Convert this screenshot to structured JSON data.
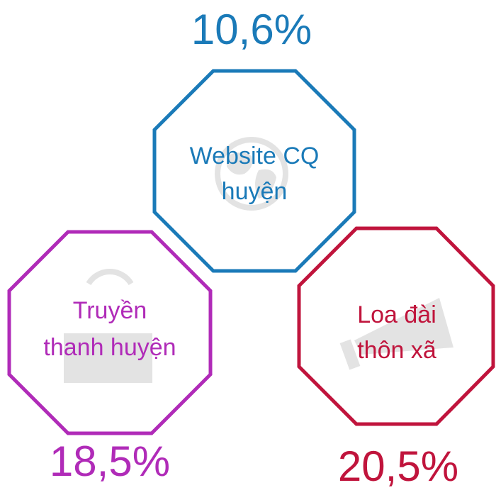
{
  "nodes": [
    {
      "label": [
        "Website CQ",
        "huyện"
      ],
      "value": "10,6%"
    },
    {
      "label": [
        "Truyền",
        "thanh huyện"
      ],
      "value": "18,5%"
    },
    {
      "label": [
        "Loa đài",
        "thôn xã"
      ],
      "value": "20,5%"
    }
  ]
}
